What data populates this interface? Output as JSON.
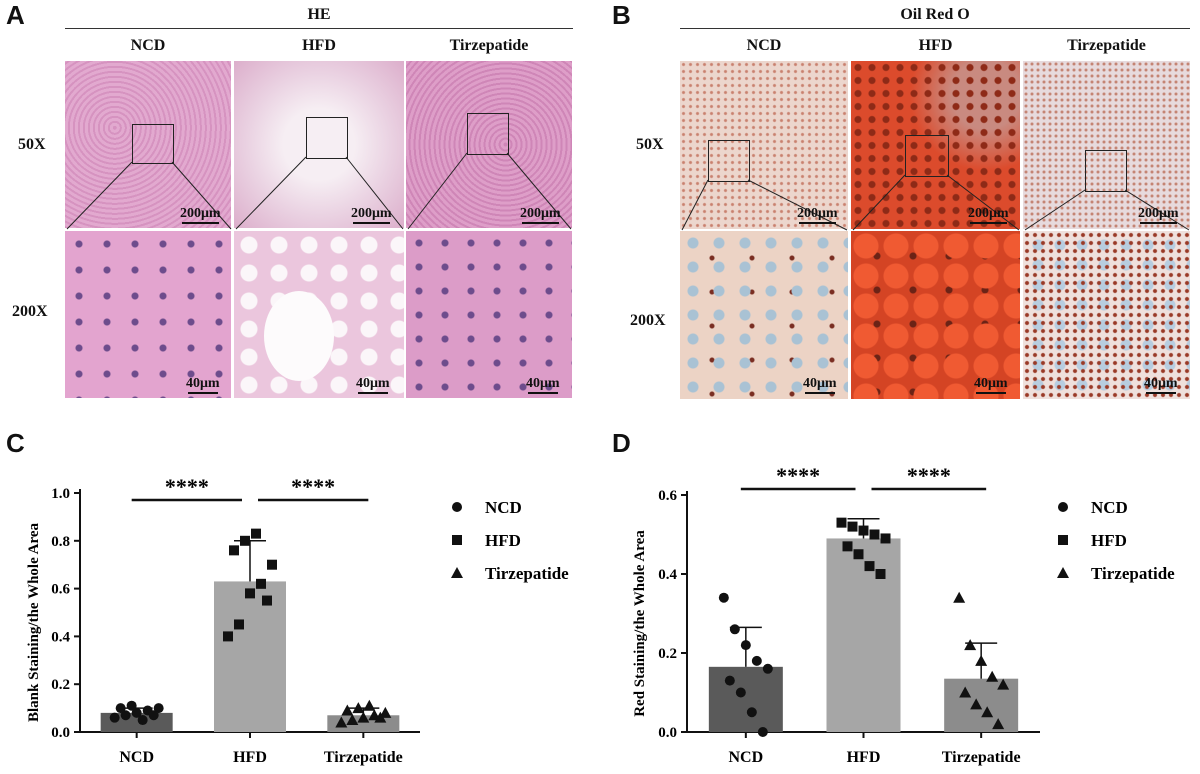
{
  "figure": {
    "panel_labels": {
      "a": "A",
      "b": "B",
      "c": "C",
      "d": "D"
    },
    "he": {
      "title": "HE",
      "columns": [
        "NCD",
        "HFD",
        "Tirzepatide"
      ],
      "rows": [
        "50X",
        "200X"
      ],
      "scale_low": "200μm",
      "scale_high": "40μm"
    },
    "oro": {
      "title": "Oil Red O",
      "columns": [
        "NCD",
        "HFD",
        "Tirzepatide"
      ],
      "rows": [
        "50X",
        "200X"
      ],
      "scale_low": "200μm",
      "scale_high": "40μm"
    },
    "colors": {
      "he_tissue": "#d98fbf",
      "he_light": "#f3e6ef",
      "oro_light": "#e9d3cc",
      "oro_heavy": "#d8472a",
      "bar_ncd": "#5a5a5a",
      "bar_hfd": "#a6a6a6",
      "bar_tirz": "#8c8c8c"
    }
  },
  "chart_data": [
    {
      "type": "bar",
      "panel": "C",
      "categories": [
        "NCD",
        "HFD",
        "Tirzepatide"
      ],
      "values": [
        0.08,
        0.63,
        0.07
      ],
      "errors": [
        0.02,
        0.17,
        0.03
      ],
      "ylabel": "Blank Staining/the Whole Area",
      "ylim": [
        0,
        1.0
      ],
      "yticks": [
        "0.0",
        "0.2",
        "0.4",
        "0.6",
        "0.8",
        "1.0"
      ],
      "points": [
        [
          0.06,
          0.07,
          0.08,
          0.09,
          0.1,
          0.1,
          0.11,
          0.05,
          0.07
        ],
        [
          0.4,
          0.45,
          0.58,
          0.62,
          0.7,
          0.76,
          0.8,
          0.83,
          0.55
        ],
        [
          0.04,
          0.05,
          0.06,
          0.07,
          0.08,
          0.09,
          0.1,
          0.11,
          0.06
        ]
      ],
      "significance": [
        "****",
        "****"
      ],
      "legend": [
        "NCD",
        "HFD",
        "Tirzepatide"
      ],
      "legend_position": "right"
    },
    {
      "type": "bar",
      "panel": "D",
      "categories": [
        "NCD",
        "HFD",
        "Tirzepatide"
      ],
      "values": [
        0.165,
        0.49,
        0.135
      ],
      "errors": [
        0.1,
        0.05,
        0.09
      ],
      "ylabel": "Red Staining/the Whole Area",
      "ylim": [
        0,
        0.6
      ],
      "yticks": [
        "0.0",
        "0.2",
        "0.4",
        "0.6"
      ],
      "points": [
        [
          0.34,
          0.26,
          0.22,
          0.18,
          0.16,
          0.13,
          0.1,
          0.05,
          0.0
        ],
        [
          0.53,
          0.52,
          0.51,
          0.5,
          0.49,
          0.47,
          0.45,
          0.42,
          0.4
        ],
        [
          0.34,
          0.22,
          0.18,
          0.14,
          0.12,
          0.1,
          0.07,
          0.05,
          0.02
        ]
      ],
      "significance": [
        "****",
        "****"
      ],
      "legend": [
        "NCD",
        "HFD",
        "Tirzepatide"
      ],
      "legend_position": "right"
    }
  ]
}
